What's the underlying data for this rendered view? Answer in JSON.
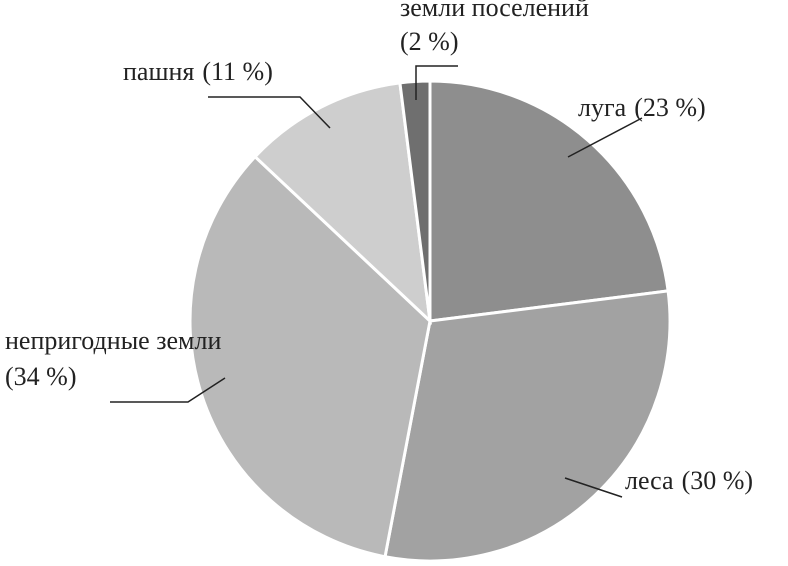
{
  "chart_data": {
    "type": "pie",
    "categories": [
      "луга",
      "леса",
      "непригодные земли",
      "пашня",
      "земли поселений"
    ],
    "values": [
      23,
      30,
      34,
      11,
      2
    ],
    "value_labels": [
      "(23 %)",
      "(30 %)",
      "(34 %)",
      "(11 %)",
      "(2 %)"
    ],
    "colors": [
      "#8e8e8e",
      "#a2a2a2",
      "#b9b9b9",
      "#cecece",
      "#6f6f6f"
    ]
  }
}
